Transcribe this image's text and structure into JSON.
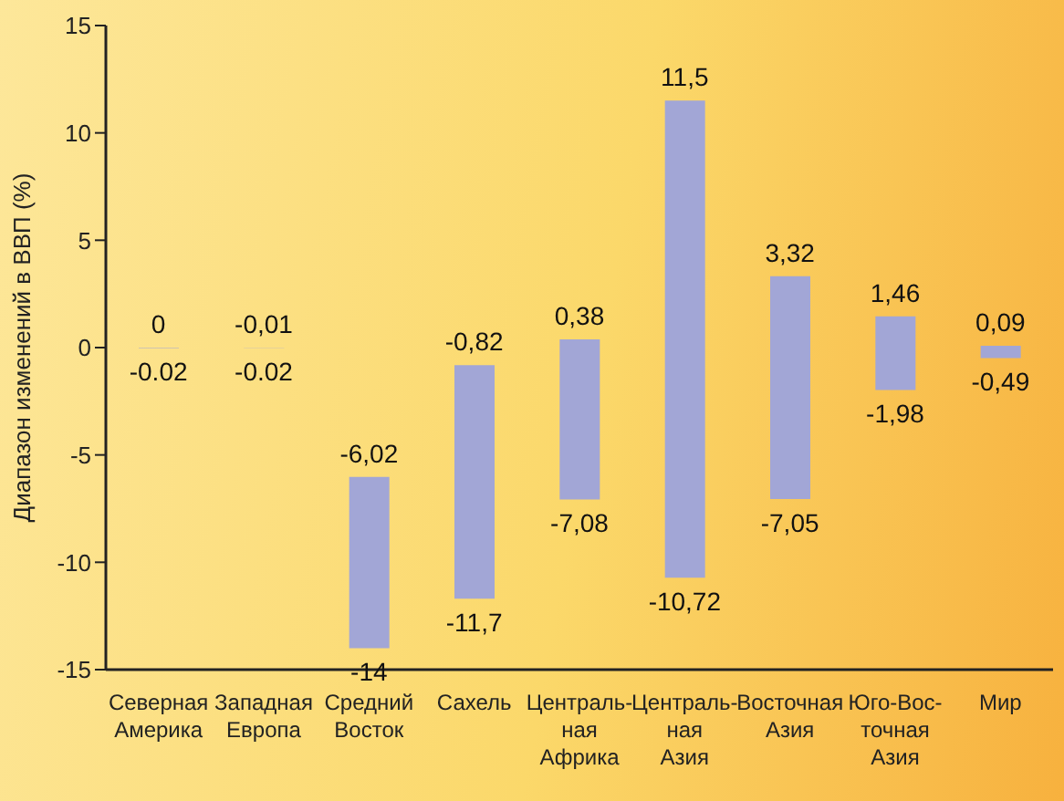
{
  "chart_data": {
    "type": "bar",
    "ylabel": "Диапазон изменений в ВВП (%)",
    "categories": [
      "Северная\nАмерика",
      "Западная\nЕвропа",
      "Средний\nВосток",
      "Сахель",
      "Централь-\nная\nАфрика",
      "Централь-\nная\nАзия",
      "Восточная\nАзия",
      "Юго-Вос-\nточная\nАзия",
      "Мир"
    ],
    "base": [
      -0.02,
      -0.02,
      -14,
      -11.7,
      -7.08,
      -10.72,
      -7.05,
      -1.98,
      -0.49
    ],
    "values": [
      0.02,
      0.01,
      7.98,
      10.88,
      7.46,
      22.22,
      10.37,
      3.44,
      0.58
    ],
    "color": "#a2a6d6",
    "ylim": [
      -15,
      15
    ],
    "yticks": [
      -15,
      -10,
      -5,
      0,
      5,
      10,
      15
    ],
    "grid": false,
    "legend": false,
    "annotations": [
      {
        "text": "0",
        "x": "Северная\nАмерика",
        "y": 0
      },
      {
        "text": "-0.02",
        "x": "Северная\nАмерика",
        "y": -0.02
      },
      {
        "text": "-0,01",
        "x": "Западная\nЕвропа",
        "y": -0.01
      },
      {
        "text": "-0.02",
        "x": "Западная\nЕвропа",
        "y": -0.02
      },
      {
        "text": "-6,02",
        "x": "Средний\nВосток",
        "y": -6.02
      },
      {
        "text": "-14",
        "x": "Средний\nВосток",
        "y": -14
      },
      {
        "text": "-0,82",
        "x": "Сахель",
        "y": -0.82
      },
      {
        "text": "-11,7",
        "x": "Сахель",
        "y": -11.7
      },
      {
        "text": "0,38",
        "x": "Централь-\nная\nАфрика",
        "y": 0.38
      },
      {
        "text": "-7,08",
        "x": "Централь-\nная\nАфрика",
        "y": -7.08
      },
      {
        "text": "11,5",
        "x": "Централь-\nная\nАзия",
        "y": 11.5
      },
      {
        "text": "-10,72",
        "x": "Централь-\nная\nАзия",
        "y": -10.72
      },
      {
        "text": "3,32",
        "x": "Восточная\nАзия",
        "y": 3.32
      },
      {
        "text": "-7,05",
        "x": "Восточная\nАзия",
        "y": -7.05
      },
      {
        "text": "1,46",
        "x": "Юго-Вос-\nточная\nАзия",
        "y": 1.46
      },
      {
        "text": "-1,98",
        "x": "Юго-Вос-\nточная\nАзия",
        "y": -1.98
      },
      {
        "text": "0,09",
        "x": "Мир",
        "y": 0.09
      },
      {
        "text": "-0,49",
        "x": "Мир",
        "y": -0.49
      }
    ]
  }
}
